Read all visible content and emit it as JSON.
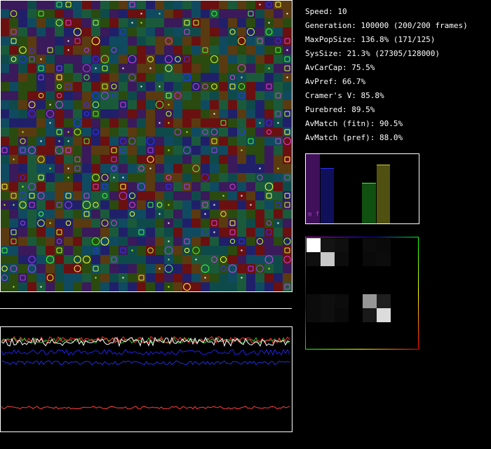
{
  "stats": [
    "Speed: 10",
    "Generation: 100000 (200/200 frames)",
    "MaxPopSize: 136.8% (171/125)",
    "SysSize: 21.3% (27305/128000)",
    "AvCarCap: 75.5%",
    "AvPref: 66.7%",
    "Cramer's V: 85.8%",
    "Purebred: 89.5%",
    "AvMatch (fitn): 90.5%",
    "AvMatch (pref): 88.0%"
  ],
  "bar_panel": {
    "label": "m f"
  }
}
